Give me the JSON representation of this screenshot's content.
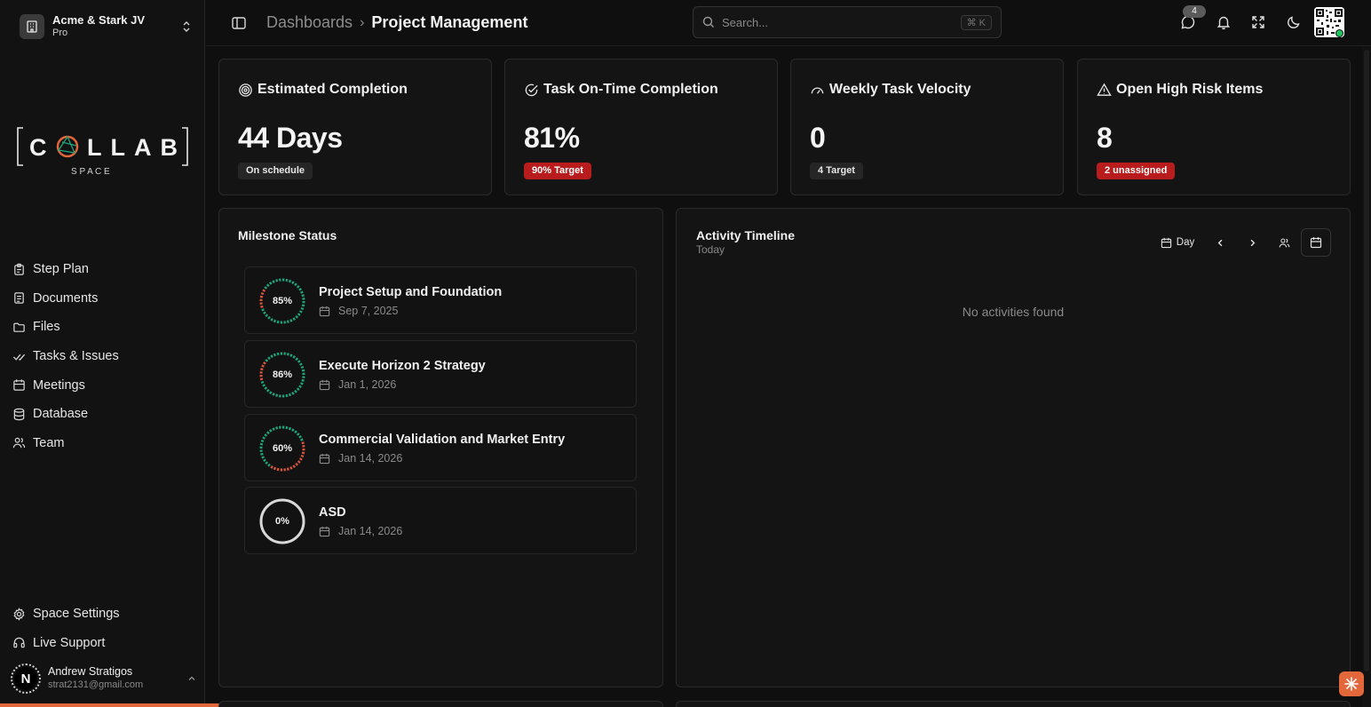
{
  "workspace": {
    "name": "Acme & Stark JV",
    "plan": "Pro"
  },
  "logo": {
    "word": "C LLAB",
    "sub": "S P A C E"
  },
  "nav": [
    {
      "label": "Step Plan",
      "icon": "clipboard-icon"
    },
    {
      "label": "Documents",
      "icon": "document-icon"
    },
    {
      "label": "Files",
      "icon": "folder-icon"
    },
    {
      "label": "Tasks & Issues",
      "icon": "check-double-icon"
    },
    {
      "label": "Meetings",
      "icon": "calendar-icon"
    },
    {
      "label": "Database",
      "icon": "database-icon"
    },
    {
      "label": "Team",
      "icon": "users-icon"
    }
  ],
  "nav_bottom": [
    {
      "label": "Space Settings",
      "icon": "gear-icon"
    },
    {
      "label": "Live Support",
      "icon": "headset-icon"
    }
  ],
  "user": {
    "initial": "N",
    "name": "Andrew Stratigos",
    "email": "strat2131@gmail.com"
  },
  "breadcrumb": {
    "parent": "Dashboards",
    "separator": "›",
    "current": "Project Management"
  },
  "search": {
    "placeholder": "Search...",
    "shortcut": "⌘ K"
  },
  "header": {
    "messages_badge": "4"
  },
  "stats": [
    {
      "title": "Estimated Completion",
      "value": "44 Days",
      "pill": "On schedule",
      "pill_style": "neutral",
      "icon": "target-icon"
    },
    {
      "title": "Task On-Time Completion",
      "value": "81%",
      "pill": "90% Target",
      "pill_style": "red",
      "icon": "check-circle-icon"
    },
    {
      "title": "Weekly Task Velocity",
      "value": "0",
      "pill": "4 Target",
      "pill_style": "neutral",
      "icon": "gauge-icon"
    },
    {
      "title": "Open High Risk Items",
      "value": "8",
      "pill": "2 unassigned",
      "pill_style": "red",
      "icon": "warning-icon"
    }
  ],
  "milestones": {
    "title": "Milestone Status",
    "items": [
      {
        "name": "Project Setup and Foundation",
        "date": "Sep 7, 2025",
        "percent_label": "85%",
        "progress": 0.85
      },
      {
        "name": "Execute Horizon 2 Strategy",
        "date": "Jan 1, 2026",
        "percent_label": "86%",
        "progress": 0.86
      },
      {
        "name": "Commercial Validation and Market Entry",
        "date": "Jan 14, 2026",
        "percent_label": "60%",
        "progress": 0.6
      },
      {
        "name": "ASD",
        "date": "Jan 14, 2026",
        "percent_label": "0%",
        "progress": 0
      }
    ]
  },
  "activity": {
    "title": "Activity Timeline",
    "subtitle": "Today",
    "view_label": "Day",
    "empty": "No activities found"
  },
  "colors": {
    "accent": "#e2673b",
    "ring_green": "#1fa37a",
    "ring_red": "#d9553a",
    "danger": "#b91c1c",
    "online": "#22c55e"
  }
}
